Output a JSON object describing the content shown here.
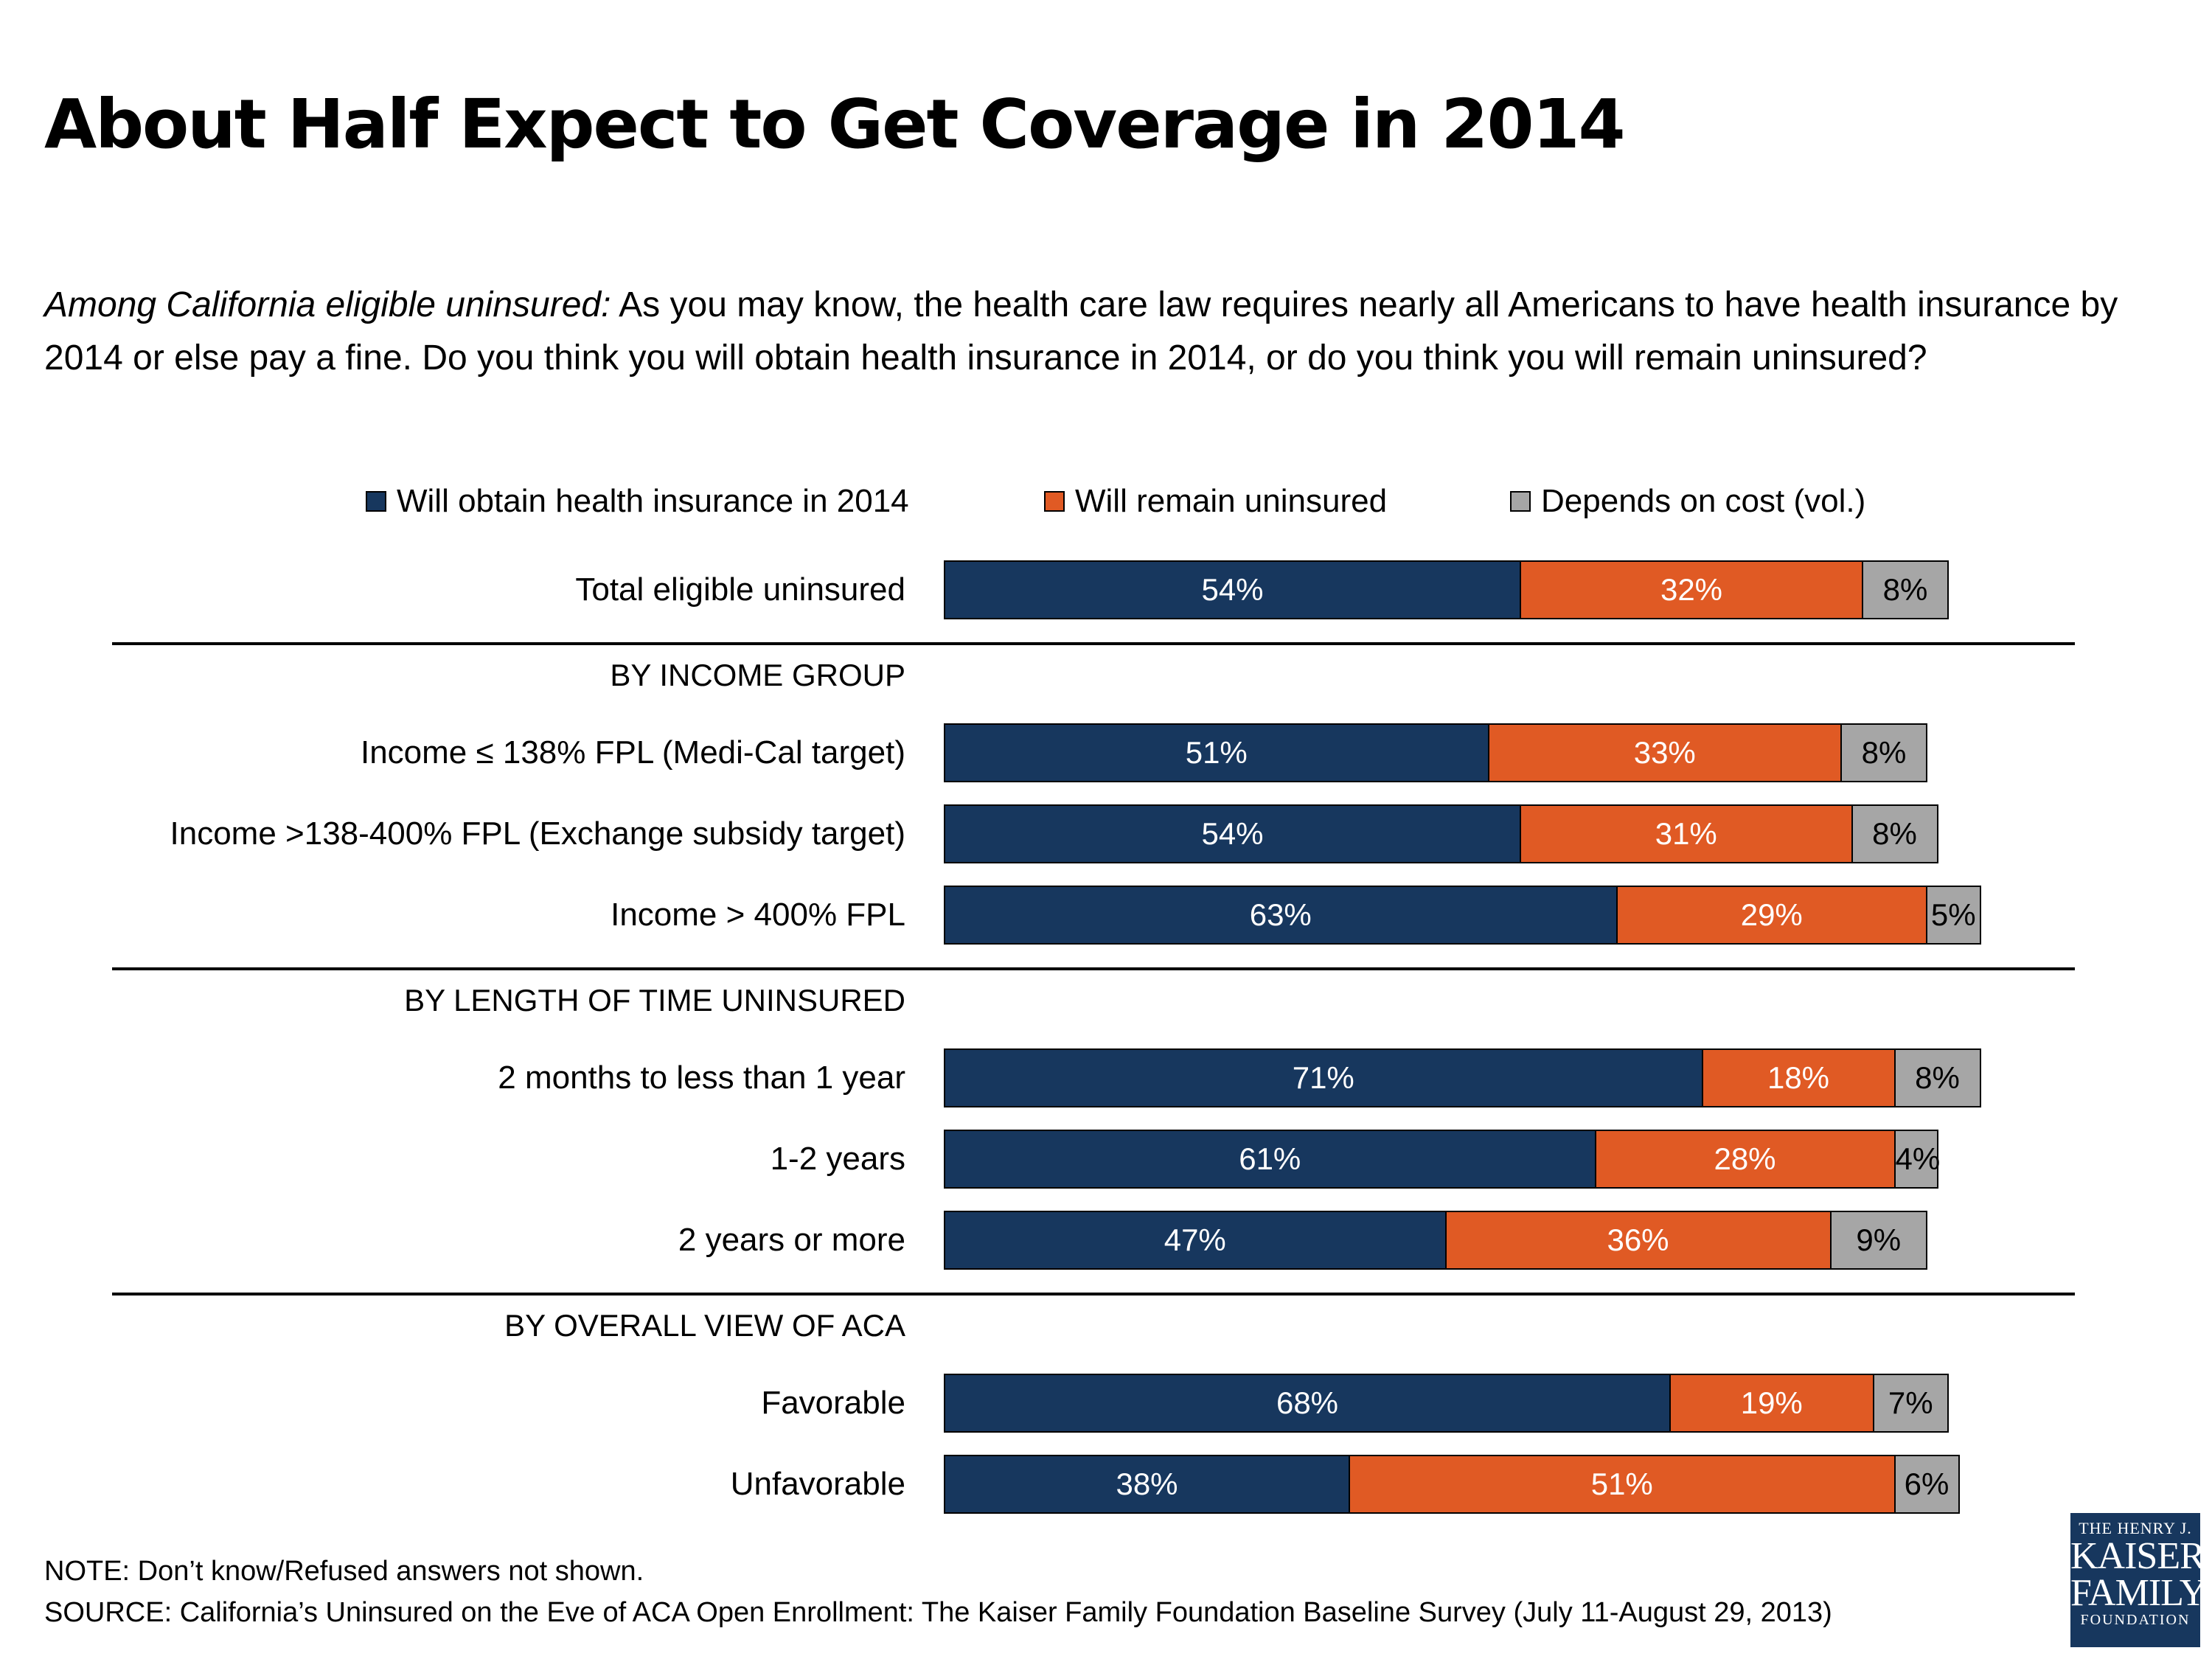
{
  "title": "About Half Expect to Get Coverage in 2014",
  "question": {
    "intro": "Among California eligible uninsured:",
    "text": " As you may know, the health care law requires nearly all Americans to have health insurance by 2014 or else pay a fine. Do you think you will obtain health insurance in 2014, or do you think you will remain uninsured?"
  },
  "colors": {
    "obtain": "#17375e",
    "remain": "#e05a24",
    "depends": "#a6a6a6"
  },
  "chart_data": {
    "type": "bar",
    "orientation": "horizontal",
    "stacked": true,
    "legend_position": "top",
    "series": [
      {
        "name": "Will obtain health insurance in 2014",
        "key": "obtain"
      },
      {
        "name": "Will remain uninsured",
        "key": "remain"
      },
      {
        "name": "Depends on cost (vol.)",
        "key": "depends"
      }
    ],
    "rows": [
      {
        "section": "",
        "label": "Total eligible uninsured",
        "values": [
          54,
          32,
          8
        ],
        "labels": [
          "54%",
          "32%",
          "8%"
        ]
      },
      {
        "section": "BY INCOME GROUP",
        "label": "Income ≤ 138% FPL (Medi-Cal target)",
        "values": [
          51,
          33,
          8
        ],
        "labels": [
          "51%",
          "33%",
          "8%"
        ]
      },
      {
        "section": "BY INCOME GROUP",
        "label": "Income >138-400% FPL (Exchange subsidy target)",
        "values": [
          54,
          31,
          8
        ],
        "labels": [
          "54%",
          "31%",
          "8%"
        ]
      },
      {
        "section": "BY INCOME GROUP",
        "label": "Income > 400% FPL",
        "values": [
          63,
          29,
          5
        ],
        "labels": [
          "63%",
          "29%",
          "5%"
        ]
      },
      {
        "section": "BY LENGTH OF TIME UNINSURED",
        "label": "2 months to less than 1 year",
        "values": [
          71,
          18,
          8
        ],
        "labels": [
          "71%",
          "18%",
          "8%"
        ]
      },
      {
        "section": "BY LENGTH OF TIME UNINSURED",
        "label": "1-2 years",
        "values": [
          61,
          28,
          4
        ],
        "labels": [
          "61%",
          "28%",
          "4%"
        ]
      },
      {
        "section": "BY LENGTH OF TIME UNINSURED",
        "label": "2 years or more",
        "values": [
          47,
          36,
          9
        ],
        "labels": [
          "47%",
          "36%",
          "9%"
        ]
      },
      {
        "section": "BY OVERALL VIEW OF ACA",
        "label": "Favorable",
        "values": [
          68,
          19,
          7
        ],
        "labels": [
          "68%",
          "19%",
          "7%"
        ]
      },
      {
        "section": "BY OVERALL VIEW OF ACA",
        "label": "Unfavorable",
        "values": [
          38,
          51,
          6
        ],
        "labels": [
          "38%",
          "51%",
          "6%"
        ]
      }
    ]
  },
  "footer": {
    "note": "NOTE: Don’t know/Refused answers not shown.",
    "source": "SOURCE: California’s Uninsured on the Eve of ACA Open Enrollment: The Kaiser Family Foundation Baseline Survey (July 11-August 29, 2013)"
  },
  "logo": {
    "line1": "THE HENRY J.",
    "line2a": "KAISER",
    "line2b": "FAMILY",
    "line3": "FOUNDATION"
  }
}
